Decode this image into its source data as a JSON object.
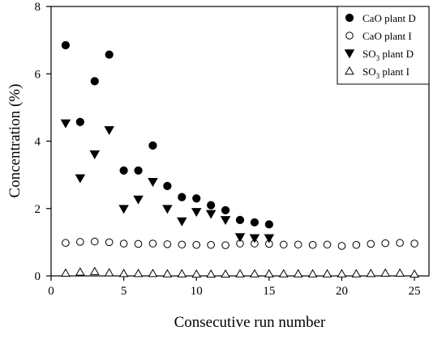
{
  "chart_data": {
    "type": "scatter",
    "title": "",
    "xlabel": "Consecutive run number",
    "ylabel": "Concentration (%)",
    "xlim": [
      0,
      26
    ],
    "ylim": [
      0,
      8
    ],
    "xticks": [
      0,
      5,
      10,
      15,
      20,
      25
    ],
    "yticks": [
      0,
      2,
      4,
      6,
      8
    ],
    "xtick_labels": [
      "0",
      "5",
      "10",
      "15",
      "20",
      "25"
    ],
    "ytick_labels": [
      "0",
      "2",
      "4",
      "6",
      "8"
    ],
    "grid": false,
    "legend_position": "top-right",
    "series": [
      {
        "name": "CaO plant D",
        "legend_parts": [
          "CaO plant D"
        ],
        "marker": "filled-circle",
        "x": [
          1,
          2,
          3,
          4,
          5,
          6,
          7,
          8,
          9,
          10,
          11,
          12,
          13,
          14,
          15
        ],
        "y": [
          6.85,
          4.57,
          5.78,
          6.57,
          3.13,
          3.13,
          3.87,
          2.67,
          2.34,
          2.3,
          2.1,
          1.95,
          1.66,
          1.59,
          1.53
        ]
      },
      {
        "name": "CaO plant I",
        "legend_parts": [
          "CaO plant I"
        ],
        "marker": "open-circle",
        "x": [
          1,
          2,
          3,
          4,
          5,
          6,
          7,
          8,
          9,
          10,
          11,
          12,
          13,
          14,
          15,
          16,
          17,
          18,
          19,
          20,
          21,
          22,
          23,
          24,
          25
        ],
        "y": [
          0.98,
          1.01,
          1.02,
          1.0,
          0.96,
          0.95,
          0.96,
          0.94,
          0.93,
          0.92,
          0.92,
          0.91,
          0.96,
          0.96,
          0.95,
          0.93,
          0.93,
          0.92,
          0.93,
          0.89,
          0.92,
          0.95,
          0.97,
          0.98,
          0.96
        ]
      },
      {
        "name": "SO3 plant D",
        "legend_parts": [
          "SO",
          "3",
          " plant D"
        ],
        "marker": "filled-triangle-down",
        "x": [
          1,
          2,
          3,
          4,
          5,
          6,
          7,
          8,
          9,
          10,
          11,
          12,
          13,
          14,
          15
        ],
        "y": [
          4.53,
          2.9,
          3.61,
          4.33,
          1.99,
          2.27,
          2.79,
          1.99,
          1.62,
          1.9,
          1.84,
          1.66,
          1.15,
          1.12,
          1.12
        ]
      },
      {
        "name": "SO3 plant I",
        "legend_parts": [
          "SO",
          "3",
          " plant I"
        ],
        "marker": "open-triangle-up",
        "x": [
          1,
          2,
          3,
          4,
          5,
          6,
          7,
          8,
          9,
          10,
          11,
          12,
          13,
          14,
          15,
          16,
          17,
          18,
          19,
          20,
          21,
          22,
          23,
          24,
          25
        ],
        "y": [
          0.08,
          0.11,
          0.13,
          0.09,
          0.07,
          0.07,
          0.07,
          0.06,
          0.06,
          0.05,
          0.05,
          0.05,
          0.06,
          0.06,
          0.06,
          0.06,
          0.06,
          0.06,
          0.06,
          0.06,
          0.06,
          0.07,
          0.08,
          0.08,
          0.05
        ]
      }
    ]
  }
}
